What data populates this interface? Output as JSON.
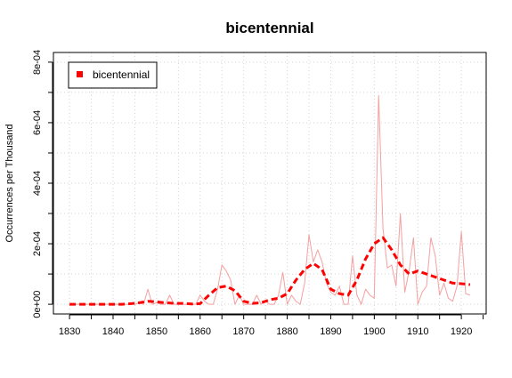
{
  "chart_data": {
    "type": "line",
    "title": "bicentennial",
    "xlabel": "",
    "ylabel": "Occurrences per Thousand",
    "xlim": [
      1830,
      1922
    ],
    "ylim": [
      0,
      0.0008
    ],
    "x_ticks": [
      {
        "value": 1830,
        "label": "1830"
      },
      {
        "value": 1840,
        "label": "1840"
      },
      {
        "value": 1850,
        "label": "1850"
      },
      {
        "value": 1860,
        "label": "1860"
      },
      {
        "value": 1870,
        "label": "1870"
      },
      {
        "value": 1880,
        "label": "1880"
      },
      {
        "value": 1890,
        "label": "1890"
      },
      {
        "value": 1900,
        "label": "1900"
      },
      {
        "value": 1910,
        "label": "1910"
      },
      {
        "value": 1920,
        "label": "1920"
      }
    ],
    "y_ticks": [
      {
        "value": 0,
        "label": "0e+00"
      },
      {
        "value": 0.0002,
        "label": "2e-04"
      },
      {
        "value": 0.0004,
        "label": "4e-04"
      },
      {
        "value": 0.0006,
        "label": "6e-04"
      },
      {
        "value": 0.0008,
        "label": "8e-04"
      }
    ],
    "grid": true,
    "legend": {
      "position": "top-left",
      "entries": [
        "bicentennial"
      ]
    },
    "series": [
      {
        "name": "bicentennial",
        "style": "raw",
        "color": "#f4a0a0",
        "x": [
          1830,
          1831,
          1832,
          1833,
          1834,
          1835,
          1836,
          1837,
          1838,
          1839,
          1840,
          1841,
          1842,
          1843,
          1844,
          1845,
          1846,
          1847,
          1848,
          1849,
          1850,
          1851,
          1852,
          1853,
          1854,
          1855,
          1856,
          1857,
          1858,
          1859,
          1860,
          1861,
          1862,
          1863,
          1864,
          1865,
          1866,
          1867,
          1868,
          1869,
          1870,
          1871,
          1872,
          1873,
          1874,
          1875,
          1876,
          1877,
          1878,
          1879,
          1880,
          1881,
          1882,
          1883,
          1884,
          1885,
          1886,
          1887,
          1888,
          1889,
          1890,
          1891,
          1892,
          1893,
          1894,
          1895,
          1896,
          1897,
          1898,
          1899,
          1900,
          1901,
          1902,
          1903,
          1904,
          1905,
          1906,
          1907,
          1908,
          1909,
          1910,
          1911,
          1912,
          1913,
          1914,
          1915,
          1916,
          1917,
          1918,
          1919,
          1920,
          1921,
          1922
        ],
        "values": [
          0,
          0,
          0,
          0,
          0,
          0,
          0,
          0,
          0,
          0,
          0,
          0,
          0,
          0,
          0,
          0,
          5e-06,
          0,
          5e-05,
          0,
          5e-06,
          0,
          0,
          3e-05,
          0,
          0,
          0,
          0,
          0,
          0,
          3e-05,
          1e-05,
          0,
          0,
          5e-05,
          0.00013,
          0.00011,
          8e-05,
          0,
          3e-05,
          0,
          0,
          0,
          3e-05,
          0,
          1e-05,
          0,
          0,
          3e-05,
          0.000105,
          0,
          3e-05,
          1e-05,
          0,
          7e-05,
          0.00023,
          0.00014,
          0.00018,
          0.00014,
          7e-05,
          4e-05,
          3e-05,
          6e-05,
          0,
          0,
          0.00016,
          3e-05,
          0,
          5e-05,
          3e-05,
          2e-05,
          0.00069,
          0.00025,
          0.00012,
          0.00013,
          6e-05,
          0.0003,
          4e-05,
          0.00011,
          0.00022,
          0,
          4e-05,
          6e-05,
          0.00022,
          0.00016,
          3e-05,
          7e-05,
          2e-05,
          1e-05,
          6e-05,
          0.00024,
          3.5e-05,
          3e-05
        ]
      },
      {
        "name": "bicentennial",
        "style": "smoothed",
        "color": "#ff0000",
        "x": [
          1830,
          1832,
          1834,
          1836,
          1838,
          1840,
          1842,
          1844,
          1846,
          1848,
          1850,
          1852,
          1854,
          1856,
          1858,
          1860,
          1862,
          1864,
          1866,
          1868,
          1870,
          1872,
          1874,
          1876,
          1878,
          1880,
          1882,
          1884,
          1886,
          1888,
          1890,
          1892,
          1894,
          1896,
          1898,
          1900,
          1902,
          1904,
          1906,
          1908,
          1910,
          1912,
          1914,
          1916,
          1918,
          1920,
          1922
        ],
        "values": [
          0,
          0,
          0,
          0,
          0,
          0,
          0,
          2e-06,
          5e-06,
          1e-05,
          8e-06,
          5e-06,
          3e-06,
          3e-06,
          1e-06,
          2e-06,
          3e-05,
          5.5e-05,
          6e-05,
          4.5e-05,
          1e-05,
          3e-06,
          5e-06,
          1.5e-05,
          2e-05,
          3.5e-05,
          8e-05,
          0.000115,
          0.000135,
          0.000115,
          5e-05,
          3.5e-05,
          3e-05,
          8e-05,
          0.00015,
          0.0002,
          0.00022,
          0.00018,
          0.00013,
          0.0001,
          0.00011,
          0.0001,
          9e-05,
          8e-05,
          7e-05,
          6.8e-05,
          6.5e-05
        ]
      }
    ]
  }
}
